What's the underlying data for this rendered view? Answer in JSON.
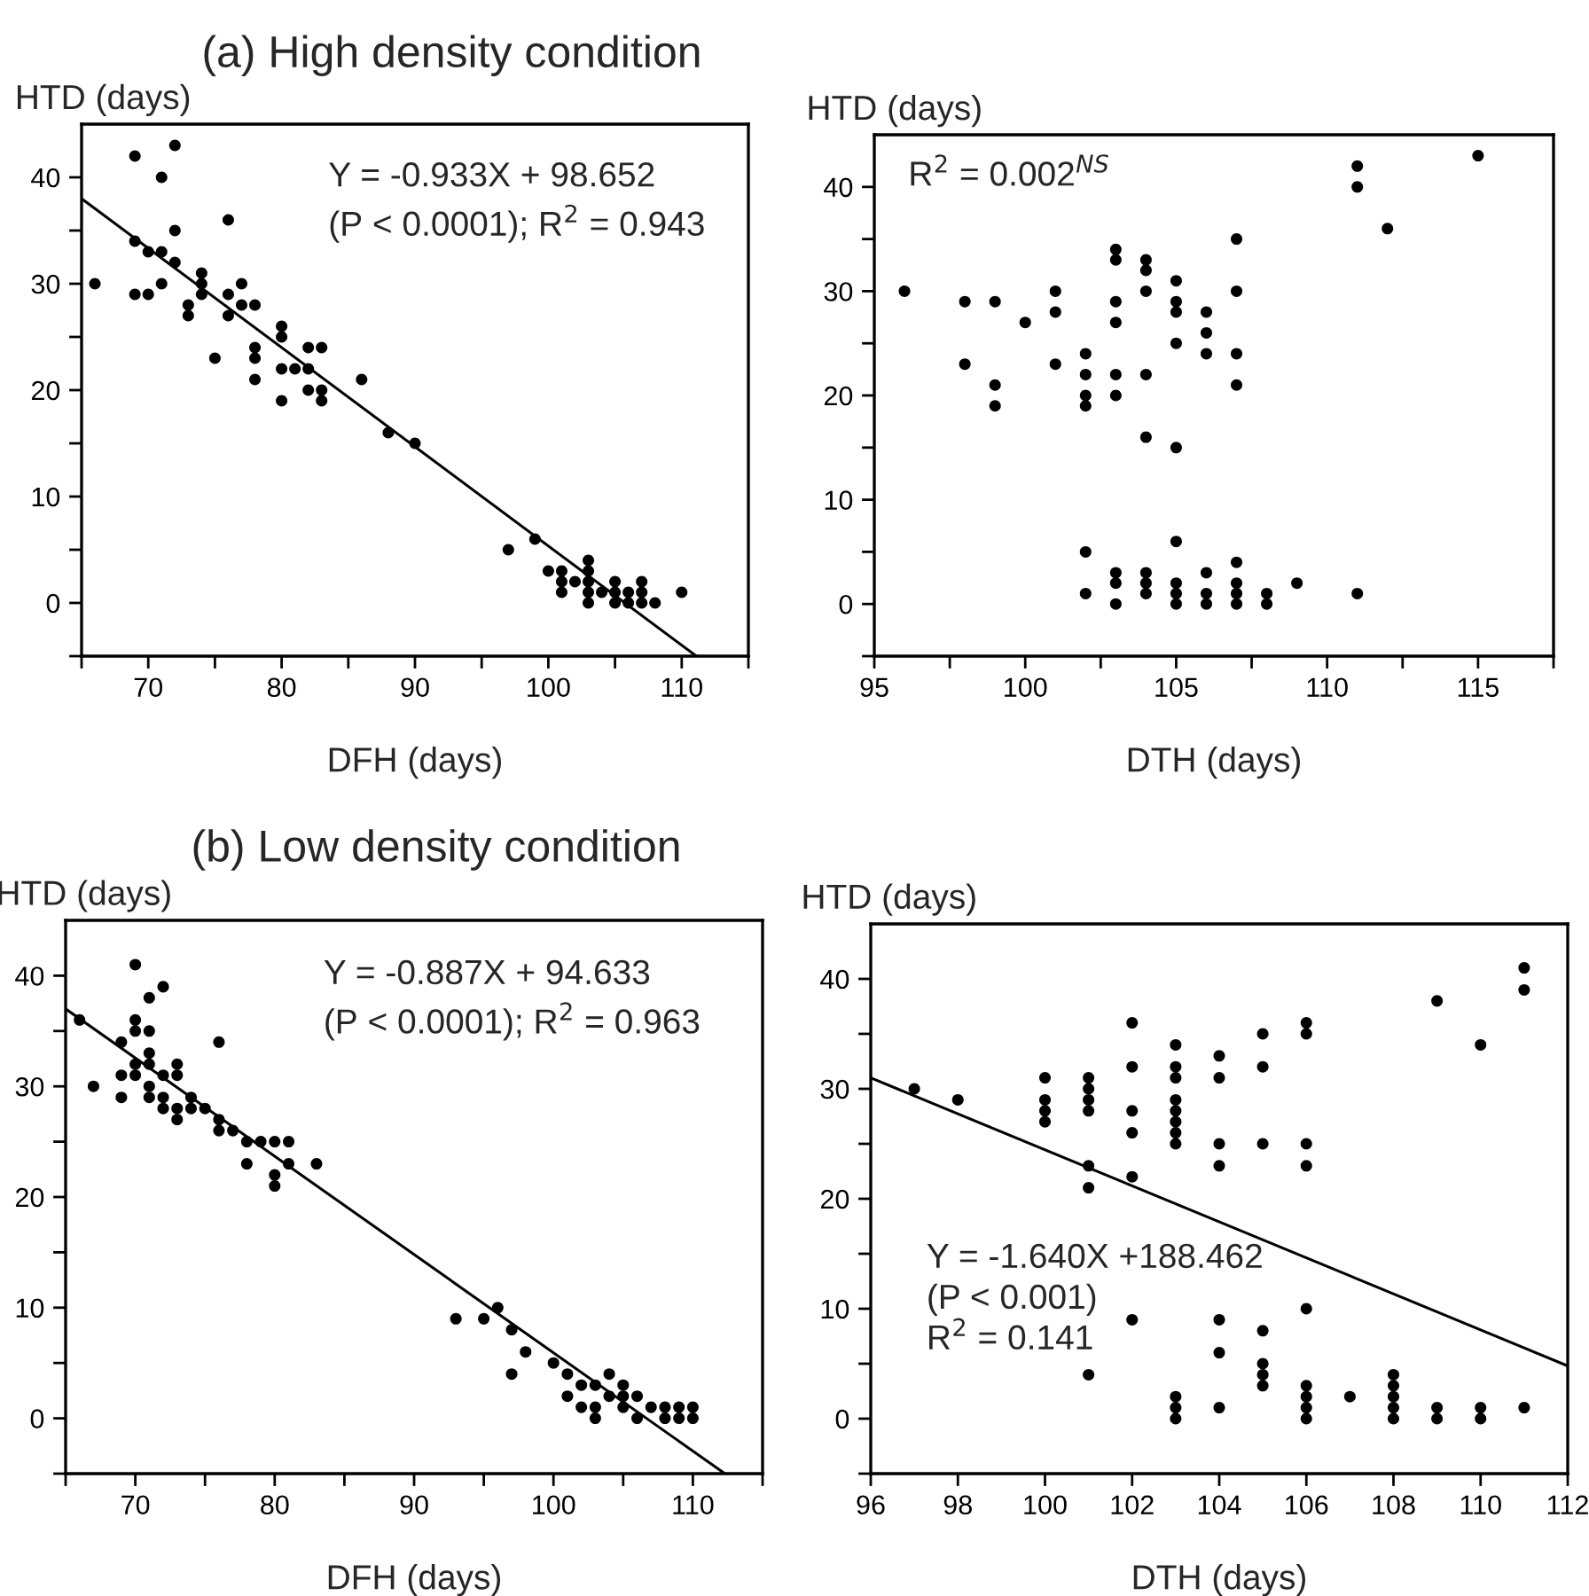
{
  "chart_data": [
    {
      "type": "scatter",
      "title": "(a) High density condition",
      "xlabel": "DFH (days)",
      "ylabel": "HTD (days)",
      "xlim": [
        65,
        115
      ],
      "xticks": [
        {
          "value": 65,
          "label": null
        },
        70,
        {
          "value": 75,
          "label": null
        },
        80,
        {
          "value": 85,
          "label": null
        },
        90,
        {
          "value": 95,
          "label": null
        },
        100,
        {
          "value": 105,
          "label": null
        },
        110,
        {
          "value": 115,
          "label": null
        }
      ],
      "ylim": [
        -5,
        45
      ],
      "yticks": [
        {
          "value": -5,
          "label": null
        },
        0,
        {
          "value": 5,
          "label": null
        },
        10,
        {
          "value": 15,
          "label": null
        },
        20,
        {
          "value": 25,
          "label": null
        },
        30,
        {
          "value": 35,
          "label": null
        },
        40
      ],
      "grid": false,
      "legend": false,
      "annotations": [
        "Y = -0.933X + 98.652",
        "(P < 0.0001); R$^{2}$ = 0.943"
      ],
      "series": [
        {
          "marker": "circle",
          "color": "#000000",
          "x": [
            66,
            69,
            69,
            69,
            70,
            70,
            71,
            71,
            71,
            72,
            72,
            72,
            73,
            73,
            74,
            74,
            74,
            75,
            76,
            76,
            76,
            77,
            77,
            78,
            78,
            78,
            78,
            80,
            80,
            80,
            80,
            81,
            82,
            82,
            82,
            83,
            83,
            83,
            86,
            88,
            90,
            97,
            99,
            100,
            101,
            101,
            101,
            102,
            103,
            103,
            103,
            103,
            103,
            104,
            105,
            105,
            105,
            106,
            106,
            107,
            107,
            107,
            108,
            110
          ],
          "values": [
            30,
            42,
            34,
            29,
            33,
            29,
            40,
            33,
            30,
            43,
            35,
            32,
            28,
            27,
            31,
            30,
            29,
            23,
            36,
            29,
            27,
            30,
            28,
            28,
            24,
            23,
            21,
            26,
            25,
            22,
            19,
            22,
            24,
            22,
            20,
            24,
            20,
            19,
            21,
            16,
            15,
            5,
            6,
            3,
            3,
            2,
            1,
            2,
            4,
            3,
            2,
            1,
            0,
            1,
            2,
            1,
            0,
            1,
            0,
            2,
            1,
            0,
            0,
            1
          ]
        },
        {
          "type": "line",
          "color": "#000000",
          "x": [
            65,
            111.1
          ],
          "values": [
            38.0,
            -5
          ]
        }
      ]
    },
    {
      "type": "scatter",
      "xlabel": "DTH (days)",
      "ylabel": "HTD (days)",
      "xlim": [
        95,
        117.5
      ],
      "xticks": [
        95,
        {
          "value": 97.5,
          "label": null
        },
        100,
        {
          "value": 102.5,
          "label": null
        },
        105,
        {
          "value": 107.5,
          "label": null
        },
        110,
        {
          "value": 112.5,
          "label": null
        },
        115,
        {
          "value": 117.5,
          "label": null
        }
      ],
      "ylim": [
        -5,
        45
      ],
      "yticks": [
        {
          "value": -5,
          "label": null
        },
        0,
        {
          "value": 5,
          "label": null
        },
        10,
        {
          "value": 15,
          "label": null
        },
        20,
        {
          "value": 25,
          "label": null
        },
        30,
        {
          "value": 35,
          "label": null
        },
        40
      ],
      "grid": false,
      "legend": false,
      "annotations": [
        "R$^{2}$ = 0.002$^{NS}$"
      ],
      "series": [
        {
          "marker": "circle",
          "color": "#000000",
          "x": [
            96,
            98,
            98,
            99,
            99,
            99,
            100,
            101,
            101,
            101,
            102,
            102,
            102,
            102,
            102,
            102,
            103,
            103,
            103,
            103,
            103,
            103,
            103,
            103,
            103,
            104,
            104,
            104,
            104,
            104,
            104,
            104,
            104,
            105,
            105,
            105,
            105,
            105,
            105,
            105,
            105,
            105,
            106,
            106,
            106,
            106,
            106,
            106,
            107,
            107,
            107,
            107,
            107,
            107,
            107,
            107,
            108,
            108,
            109,
            111,
            111,
            111,
            112,
            115
          ],
          "values": [
            30,
            29,
            23,
            29,
            21,
            19,
            27,
            30,
            28,
            23,
            24,
            22,
            20,
            19,
            5,
            1,
            34,
            33,
            29,
            27,
            22,
            20,
            3,
            2,
            0,
            33,
            32,
            30,
            22,
            16,
            3,
            2,
            1,
            31,
            29,
            28,
            25,
            15,
            6,
            2,
            1,
            0,
            28,
            26,
            24,
            3,
            1,
            0,
            35,
            30,
            24,
            21,
            4,
            2,
            1,
            0,
            1,
            0,
            2,
            42,
            40,
            1,
            36,
            43
          ]
        }
      ]
    },
    {
      "type": "scatter",
      "title": "(b) Low density condition",
      "xlabel": "DFH (days)",
      "ylabel": "HTD (days)",
      "xlim": [
        65,
        115
      ],
      "xticks": [
        {
          "value": 65,
          "label": null
        },
        70,
        {
          "value": 75,
          "label": null
        },
        80,
        {
          "value": 85,
          "label": null
        },
        90,
        {
          "value": 95,
          "label": null
        },
        100,
        {
          "value": 105,
          "label": null
        },
        110,
        {
          "value": 115,
          "label": null
        }
      ],
      "ylim": [
        -5,
        45
      ],
      "yticks": [
        {
          "value": -5,
          "label": null
        },
        0,
        {
          "value": 5,
          "label": null
        },
        10,
        {
          "value": 15,
          "label": null
        },
        20,
        {
          "value": 25,
          "label": null
        },
        30,
        {
          "value": 35,
          "label": null
        },
        40
      ],
      "grid": false,
      "legend": false,
      "annotations": [
        "Y = -0.887X + 94.633",
        "(P < 0.0001); R$^{2}$ = 0.963"
      ],
      "series": [
        {
          "marker": "circle",
          "color": "#000000",
          "x": [
            66,
            67,
            69,
            69,
            69,
            70,
            70,
            70,
            70,
            70,
            71,
            71,
            71,
            71,
            71,
            71,
            72,
            72,
            72,
            72,
            73,
            73,
            73,
            73,
            74,
            74,
            75,
            76,
            76,
            76,
            77,
            78,
            78,
            79,
            80,
            80,
            80,
            81,
            81,
            83,
            93,
            95,
            96,
            97,
            97,
            98,
            100,
            101,
            101,
            102,
            102,
            103,
            103,
            103,
            104,
            104,
            105,
            105,
            105,
            106,
            106,
            107,
            108,
            108,
            109,
            109,
            110,
            110
          ],
          "values": [
            36,
            30,
            34,
            31,
            29,
            41,
            36,
            35,
            32,
            31,
            38,
            35,
            33,
            32,
            30,
            29,
            39,
            31,
            29,
            28,
            32,
            31,
            28,
            27,
            29,
            28,
            28,
            34,
            27,
            26,
            26,
            25,
            23,
            25,
            25,
            22,
            21,
            25,
            23,
            23,
            9,
            9,
            10,
            8,
            4,
            6,
            5,
            4,
            2,
            3,
            1,
            3,
            1,
            0,
            4,
            2,
            3,
            2,
            1,
            2,
            0,
            1,
            1,
            0,
            1,
            0,
            1,
            0
          ]
        },
        {
          "type": "line",
          "color": "#000000",
          "x": [
            65,
            112.3
          ],
          "values": [
            37.0,
            -5
          ]
        }
      ]
    },
    {
      "type": "scatter",
      "xlabel": "DTH (days)",
      "ylabel": "HTD (days)",
      "xlim": [
        96,
        112
      ],
      "xticks": [
        96,
        98,
        100,
        102,
        104,
        106,
        108,
        110,
        112
      ],
      "ylim": [
        -5,
        45
      ],
      "yticks": [
        {
          "value": -5,
          "label": null
        },
        0,
        {
          "value": 5,
          "label": null
        },
        10,
        {
          "value": 15,
          "label": null
        },
        20,
        {
          "value": 25,
          "label": null
        },
        30,
        {
          "value": 35,
          "label": null
        },
        40
      ],
      "grid": false,
      "legend": false,
      "annotations": [
        "Y = -1.640X +188.462",
        "(P < 0.001)",
        "R$^{2}$ = 0.141"
      ],
      "series": [
        {
          "marker": "circle",
          "color": "#000000",
          "x": [
            97,
            98,
            100,
            100,
            100,
            100,
            101,
            101,
            101,
            101,
            101,
            101,
            101,
            102,
            102,
            102,
            102,
            102,
            102,
            103,
            103,
            103,
            103,
            103,
            103,
            103,
            103,
            103,
            103,
            103,
            104,
            104,
            104,
            104,
            104,
            104,
            104,
            105,
            105,
            105,
            105,
            105,
            105,
            105,
            106,
            106,
            106,
            106,
            106,
            106,
            106,
            106,
            106,
            107,
            108,
            108,
            108,
            108,
            108,
            109,
            109,
            109,
            110,
            110,
            110,
            111,
            111,
            111
          ],
          "values": [
            30,
            29,
            31,
            29,
            28,
            27,
            31,
            30,
            29,
            28,
            23,
            21,
            4,
            36,
            32,
            28,
            26,
            22,
            9,
            34,
            32,
            31,
            29,
            28,
            27,
            26,
            25,
            2,
            1,
            0,
            33,
            31,
            25,
            23,
            9,
            6,
            1,
            35,
            32,
            25,
            8,
            5,
            4,
            3,
            36,
            35,
            25,
            23,
            10,
            3,
            2,
            1,
            0,
            2,
            4,
            3,
            2,
            1,
            0,
            38,
            1,
            0,
            34,
            1,
            0,
            41,
            39,
            1
          ]
        },
        {
          "type": "line",
          "color": "#000000",
          "x": [
            96,
            112
          ],
          "values": [
            31.0,
            4.8
          ]
        }
      ]
    }
  ]
}
